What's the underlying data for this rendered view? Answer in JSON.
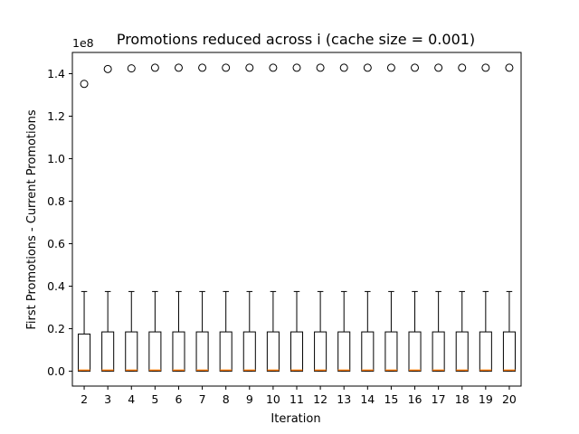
{
  "chart_data": {
    "type": "box",
    "title": "Promotions reduced across i (cache size = 0.001)",
    "xlabel": "Iteration",
    "ylabel": "First Promotions - Current Promotions",
    "y_offset_label": "1e8",
    "y_scale_note": "values in units of 1e8",
    "ylim": [
      -0.07,
      1.5
    ],
    "yticks": [
      0.0,
      0.2,
      0.4,
      0.6,
      0.8,
      1.0,
      1.2,
      1.4
    ],
    "ytick_labels": [
      "0.0",
      "0.2",
      "0.4",
      "0.6",
      "0.8",
      "1.0",
      "1.2",
      "1.4"
    ],
    "categories": [
      "2",
      "3",
      "4",
      "5",
      "6",
      "7",
      "8",
      "9",
      "10",
      "11",
      "12",
      "13",
      "14",
      "15",
      "16",
      "17",
      "18",
      "19",
      "20"
    ],
    "boxes": [
      {
        "label": "2",
        "whisker_low": 0.0,
        "q1": 0.0,
        "median": 0.005,
        "q3": 0.175,
        "whisker_high": 0.375,
        "outliers": [
          1.352
        ]
      },
      {
        "label": "3",
        "whisker_low": 0.0,
        "q1": 0.0,
        "median": 0.005,
        "q3": 0.185,
        "whisker_high": 0.375,
        "outliers": [
          1.422
        ]
      },
      {
        "label": "4",
        "whisker_low": 0.0,
        "q1": 0.0,
        "median": 0.005,
        "q3": 0.185,
        "whisker_high": 0.375,
        "outliers": [
          1.425
        ]
      },
      {
        "label": "5",
        "whisker_low": 0.0,
        "q1": 0.0,
        "median": 0.005,
        "q3": 0.185,
        "whisker_high": 0.375,
        "outliers": [
          1.428
        ]
      },
      {
        "label": "6",
        "whisker_low": 0.0,
        "q1": 0.0,
        "median": 0.005,
        "q3": 0.185,
        "whisker_high": 0.375,
        "outliers": [
          1.428
        ]
      },
      {
        "label": "7",
        "whisker_low": 0.0,
        "q1": 0.0,
        "median": 0.005,
        "q3": 0.185,
        "whisker_high": 0.375,
        "outliers": [
          1.428
        ]
      },
      {
        "label": "8",
        "whisker_low": 0.0,
        "q1": 0.0,
        "median": 0.005,
        "q3": 0.185,
        "whisker_high": 0.375,
        "outliers": [
          1.428
        ]
      },
      {
        "label": "9",
        "whisker_low": 0.0,
        "q1": 0.0,
        "median": 0.005,
        "q3": 0.185,
        "whisker_high": 0.375,
        "outliers": [
          1.428
        ]
      },
      {
        "label": "10",
        "whisker_low": 0.0,
        "q1": 0.0,
        "median": 0.005,
        "q3": 0.185,
        "whisker_high": 0.375,
        "outliers": [
          1.428
        ]
      },
      {
        "label": "11",
        "whisker_low": 0.0,
        "q1": 0.0,
        "median": 0.005,
        "q3": 0.185,
        "whisker_high": 0.375,
        "outliers": [
          1.428
        ]
      },
      {
        "label": "12",
        "whisker_low": 0.0,
        "q1": 0.0,
        "median": 0.005,
        "q3": 0.185,
        "whisker_high": 0.375,
        "outliers": [
          1.428
        ]
      },
      {
        "label": "13",
        "whisker_low": 0.0,
        "q1": 0.0,
        "median": 0.005,
        "q3": 0.185,
        "whisker_high": 0.375,
        "outliers": [
          1.428
        ]
      },
      {
        "label": "14",
        "whisker_low": 0.0,
        "q1": 0.0,
        "median": 0.005,
        "q3": 0.185,
        "whisker_high": 0.375,
        "outliers": [
          1.428
        ]
      },
      {
        "label": "15",
        "whisker_low": 0.0,
        "q1": 0.0,
        "median": 0.005,
        "q3": 0.185,
        "whisker_high": 0.375,
        "outliers": [
          1.428
        ]
      },
      {
        "label": "16",
        "whisker_low": 0.0,
        "q1": 0.0,
        "median": 0.005,
        "q3": 0.185,
        "whisker_high": 0.375,
        "outliers": [
          1.428
        ]
      },
      {
        "label": "17",
        "whisker_low": 0.0,
        "q1": 0.0,
        "median": 0.005,
        "q3": 0.185,
        "whisker_high": 0.375,
        "outliers": [
          1.428
        ]
      },
      {
        "label": "18",
        "whisker_low": 0.0,
        "q1": 0.0,
        "median": 0.005,
        "q3": 0.185,
        "whisker_high": 0.375,
        "outliers": [
          1.428
        ]
      },
      {
        "label": "19",
        "whisker_low": 0.0,
        "q1": 0.0,
        "median": 0.005,
        "q3": 0.185,
        "whisker_high": 0.375,
        "outliers": [
          1.428
        ]
      },
      {
        "label": "20",
        "whisker_low": 0.0,
        "q1": 0.0,
        "median": 0.005,
        "q3": 0.185,
        "whisker_high": 0.375,
        "outliers": [
          1.428
        ]
      }
    ],
    "grid": false,
    "colors": {
      "box_edge": "#000000",
      "median": "#ff7f0e",
      "outlier_edge": "#000000",
      "background": "#ffffff"
    }
  }
}
